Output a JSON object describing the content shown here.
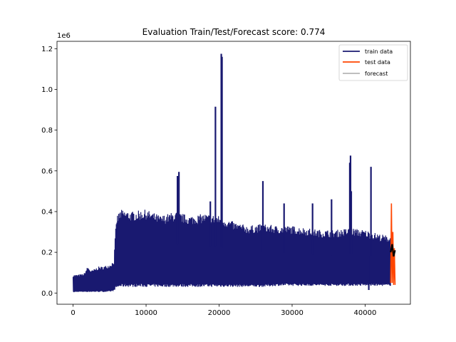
{
  "chart_data": {
    "type": "line",
    "title": "Evaluation Train/Test/Forecast score: 0.774",
    "xlabel": "",
    "ylabel": "",
    "y_offset_text": "1e6",
    "xlim": [
      -2200,
      46200
    ],
    "ylim": [
      -0.055,
      1.2361
    ],
    "x_ticks": [
      0,
      10000,
      20000,
      30000,
      40000
    ],
    "x_tick_labels": [
      "0",
      "10000",
      "20000",
      "30000",
      "40000"
    ],
    "y_ticks": [
      0.0,
      0.2,
      0.4,
      0.6,
      0.8,
      1.0,
      1.2
    ],
    "y_tick_labels": [
      "0.0",
      "0.2",
      "0.4",
      "0.6",
      "0.8",
      "1.0",
      "1.2"
    ],
    "grid": false,
    "legend_position": "top-right",
    "series": [
      {
        "name": "train data",
        "color": "#191970",
        "envelope_x": [
          0,
          500,
          1500,
          2000,
          2500,
          3500,
          4000,
          5000,
          5600,
          5800,
          6000,
          6500,
          8000,
          10000,
          12000,
          14000,
          16000,
          18000,
          20000,
          22000,
          24000,
          26000,
          28000,
          30000,
          32000,
          34000,
          36000,
          38000,
          40000,
          42000,
          43500
        ],
        "envelope_upper": [
          0.09,
          0.09,
          0.095,
          0.13,
          0.11,
          0.13,
          0.13,
          0.14,
          0.16,
          0.3,
          0.38,
          0.41,
          0.4,
          0.41,
          0.38,
          0.4,
          0.38,
          0.39,
          0.38,
          0.35,
          0.33,
          0.34,
          0.33,
          0.33,
          0.32,
          0.31,
          0.31,
          0.32,
          0.31,
          0.29,
          0.28
        ],
        "envelope_lower": [
          0.003,
          0.005,
          0.005,
          0.005,
          0.005,
          0.005,
          0.005,
          0.005,
          0.01,
          0.02,
          0.025,
          0.03,
          0.03,
          0.03,
          0.03,
          0.03,
          0.03,
          0.03,
          0.03,
          0.03,
          0.03,
          0.03,
          0.035,
          0.035,
          0.035,
          0.035,
          0.035,
          0.035,
          0.035,
          0.035,
          0.035
        ],
        "spikes": [
          {
            "x": 14300,
            "y": 0.575
          },
          {
            "x": 14500,
            "y": 0.595
          },
          {
            "x": 18800,
            "y": 0.45
          },
          {
            "x": 19500,
            "y": 0.915
          },
          {
            "x": 20300,
            "y": 1.175
          },
          {
            "x": 20400,
            "y": 1.16
          },
          {
            "x": 26000,
            "y": 0.55
          },
          {
            "x": 28900,
            "y": 0.44
          },
          {
            "x": 32800,
            "y": 0.44
          },
          {
            "x": 35400,
            "y": 0.46
          },
          {
            "x": 37900,
            "y": 0.64
          },
          {
            "x": 38000,
            "y": 0.675
          },
          {
            "x": 38100,
            "y": 0.5
          },
          {
            "x": 40800,
            "y": 0.62
          },
          {
            "x": 40500,
            "y": 0.015
          }
        ]
      },
      {
        "name": "test data",
        "color": "#ff4500",
        "x": [
          43500,
          43600,
          43700,
          43800,
          43900,
          44000,
          44100
        ],
        "y": [
          0.05,
          0.44,
          0.05,
          0.3,
          0.04,
          0.22,
          0.04
        ]
      },
      {
        "name": "forecast",
        "color": "#000000",
        "x": [
          43500,
          43700,
          43900,
          44100
        ],
        "y": [
          0.2,
          0.24,
          0.18,
          0.21
        ]
      }
    ]
  }
}
